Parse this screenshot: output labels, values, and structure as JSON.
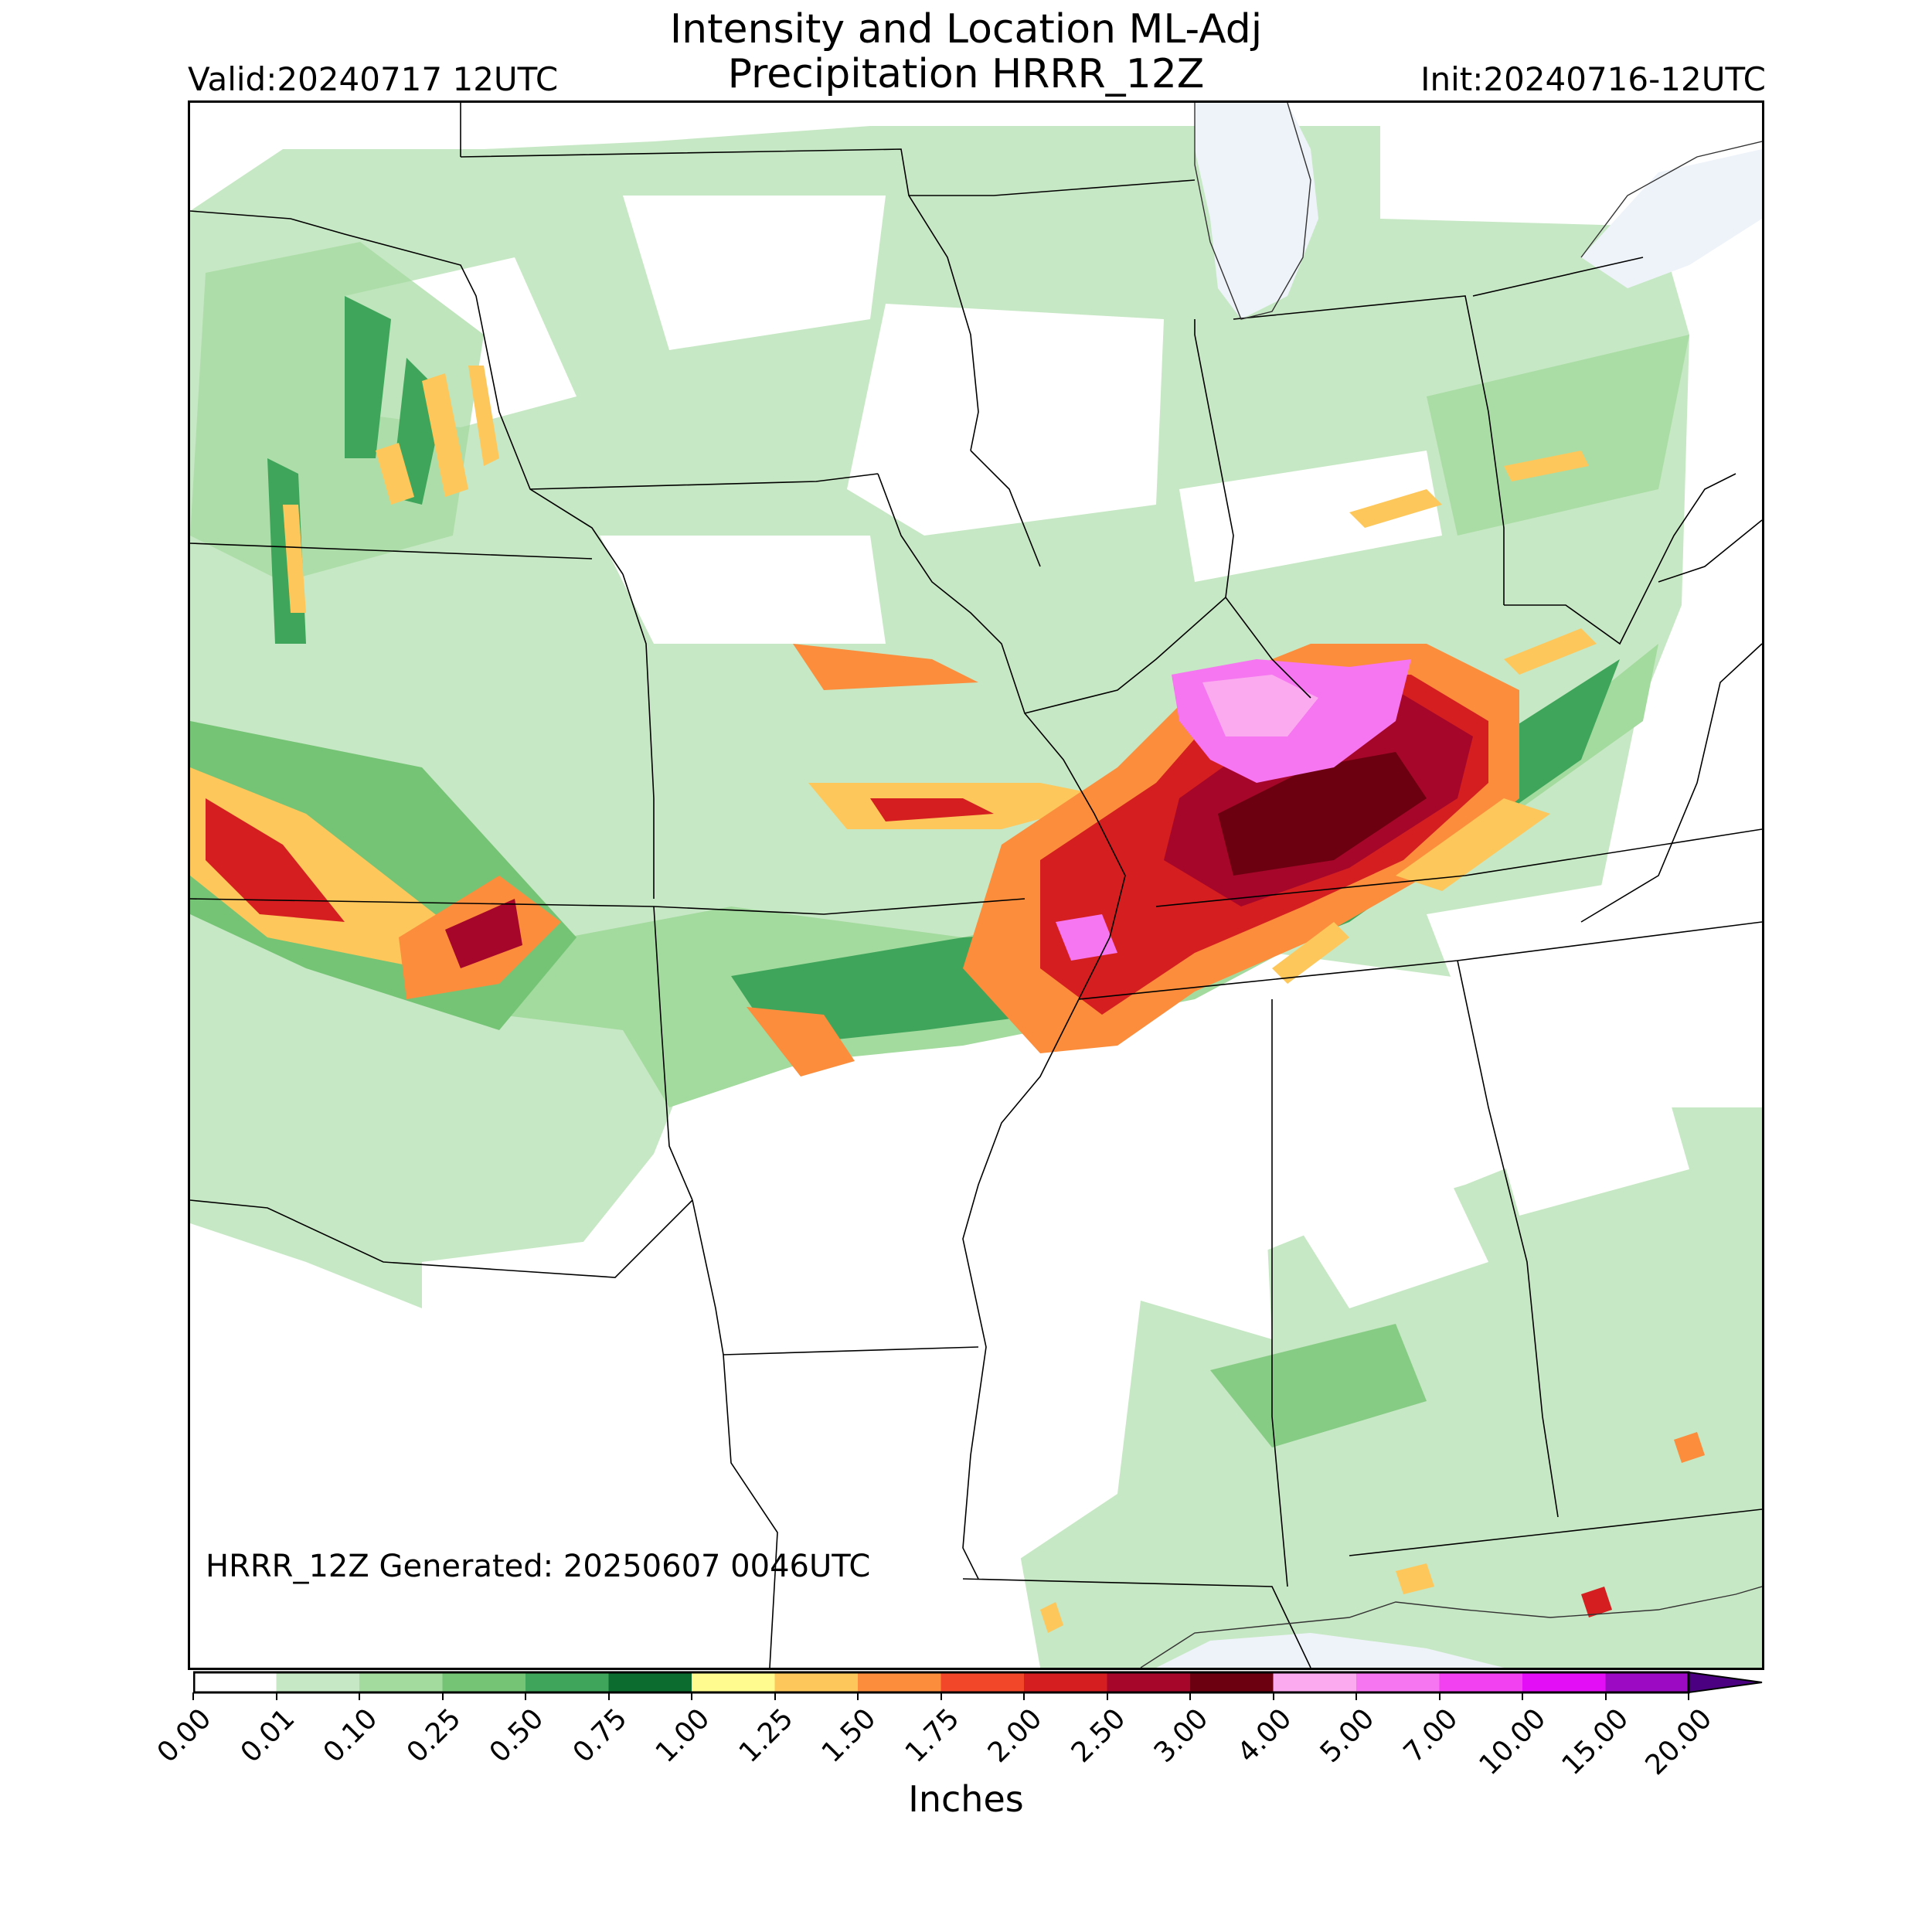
{
  "header": {
    "title_line1": "Intensity and Location ML-Adj",
    "title_line2": "Precipitation HRRR_12Z",
    "valid": "Valid:20240717 12UTC",
    "init": "Init:20240716-12UTC"
  },
  "map": {
    "generated": "HRRR_12Z Generated: 20250607 0046UTC",
    "water_color": "#eef3fa",
    "boundary_color": "#000000"
  },
  "colorbar": {
    "units": "Inches",
    "ticks": [
      "0.00",
      "0.01",
      "0.10",
      "0.25",
      "0.50",
      "0.75",
      "1.00",
      "1.25",
      "1.50",
      "1.75",
      "2.00",
      "2.50",
      "3.00",
      "4.00",
      "5.00",
      "7.00",
      "10.00",
      "15.00",
      "20.00"
    ],
    "colors": [
      "#ffffff",
      "#c7e8c4",
      "#a3da9e",
      "#75c476",
      "#3ea55a",
      "#0c6b2f",
      "#fffb8f",
      "#fdc75b",
      "#fb8d3c",
      "#f3472a",
      "#d51e1f",
      "#a6062a",
      "#6d0010",
      "#fbaaf0",
      "#f675f0",
      "#f241f1",
      "#e40ef6",
      "#9d0ac4"
    ],
    "extend_color": "#4b0082"
  }
}
